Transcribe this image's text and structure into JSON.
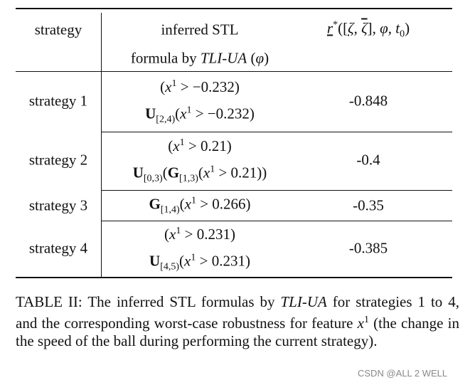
{
  "table": {
    "header": {
      "strategy": "strategy",
      "formula": [
        [
          {
            "text": "inferred STL",
            "kind": "plain"
          }
        ],
        [
          {
            "text": "formula by ",
            "kind": "plain"
          },
          {
            "text": "TLI-UA",
            "kind": "italic"
          },
          {
            "text": " (",
            "kind": "plain"
          },
          {
            "text": "φ",
            "kind": "italic"
          },
          {
            "text": ")",
            "kind": "plain"
          }
        ]
      ],
      "robustness": [
        {
          "text": "r",
          "kind": "under-italic"
        },
        {
          "text": "*",
          "kind": "sup"
        },
        {
          "text": "([",
          "kind": "plain"
        },
        {
          "text": "ζ",
          "kind": "under-italic"
        },
        {
          "text": ", ",
          "kind": "plain"
        },
        {
          "text": "ζ",
          "kind": "over-italic"
        },
        {
          "text": "], ",
          "kind": "plain"
        },
        {
          "text": "φ",
          "kind": "italic"
        },
        {
          "text": ", ",
          "kind": "plain"
        },
        {
          "text": "t",
          "kind": "italic"
        },
        {
          "text": "0",
          "kind": "sub"
        },
        {
          "text": ")",
          "kind": "plain"
        }
      ]
    },
    "rows": [
      {
        "strategy": "strategy 1",
        "robustness": -0.848,
        "formulas": [
          [
            {
              "text": "(",
              "kind": "plain"
            },
            {
              "text": "x",
              "kind": "italic"
            },
            {
              "text": "1",
              "kind": "sup"
            },
            {
              "text": " > −0.232)",
              "kind": "plain"
            }
          ],
          [
            {
              "text": "U",
              "kind": "bold"
            },
            {
              "text": "[2,4)",
              "kind": "sub"
            },
            {
              "text": "(",
              "kind": "plain"
            },
            {
              "text": "x",
              "kind": "italic"
            },
            {
              "text": "1",
              "kind": "sup"
            },
            {
              "text": " > −0.232)",
              "kind": "plain"
            }
          ]
        ]
      },
      {
        "strategy": "strategy 2",
        "robustness": -0.4,
        "formulas": [
          [
            {
              "text": "(",
              "kind": "plain"
            },
            {
              "text": "x",
              "kind": "italic"
            },
            {
              "text": "1",
              "kind": "sup"
            },
            {
              "text": " > 0.21)",
              "kind": "plain"
            }
          ],
          [
            {
              "text": "U",
              "kind": "bold"
            },
            {
              "text": "[0,3)",
              "kind": "sub"
            },
            {
              "text": "(",
              "kind": "plain"
            },
            {
              "text": "G",
              "kind": "bold"
            },
            {
              "text": "[1,3)",
              "kind": "sub"
            },
            {
              "text": "(",
              "kind": "plain"
            },
            {
              "text": "x",
              "kind": "italic"
            },
            {
              "text": "1",
              "kind": "sup"
            },
            {
              "text": " > 0.21))",
              "kind": "plain"
            }
          ]
        ]
      },
      {
        "strategy": "strategy 3",
        "robustness": -0.35,
        "formulas": [
          [
            {
              "text": "G",
              "kind": "bold"
            },
            {
              "text": "[1,4)",
              "kind": "sub"
            },
            {
              "text": "(",
              "kind": "plain"
            },
            {
              "text": "x",
              "kind": "italic"
            },
            {
              "text": "1",
              "kind": "sup"
            },
            {
              "text": " > 0.266)",
              "kind": "plain"
            }
          ]
        ]
      },
      {
        "strategy": "strategy 4",
        "robustness": -0.385,
        "formulas": [
          [
            {
              "text": "(",
              "kind": "plain"
            },
            {
              "text": "x",
              "kind": "italic"
            },
            {
              "text": "1",
              "kind": "sup"
            },
            {
              "text": " > 0.231)",
              "kind": "plain"
            }
          ],
          [
            {
              "text": "U",
              "kind": "bold"
            },
            {
              "text": "[4,5)",
              "kind": "sub"
            },
            {
              "text": "(",
              "kind": "plain"
            },
            {
              "text": "x",
              "kind": "italic"
            },
            {
              "text": "1",
              "kind": "sup"
            },
            {
              "text": " > 0.231)",
              "kind": "plain"
            }
          ]
        ]
      }
    ]
  },
  "caption": [
    {
      "text": "TABLE II: The inferred STL formulas by ",
      "kind": "plain"
    },
    {
      "text": "TLI-UA",
      "kind": "italic"
    },
    {
      "text": " for strategies 1 to 4, and the corresponding worst-case robustness for feature ",
      "kind": "plain"
    },
    {
      "text": "x",
      "kind": "italic"
    },
    {
      "text": "1",
      "kind": "sup"
    },
    {
      "text": " (the change in the speed of the ball during performing the current strategy).",
      "kind": "plain"
    }
  ],
  "watermark": "CSDN @ALL 2 WELL"
}
